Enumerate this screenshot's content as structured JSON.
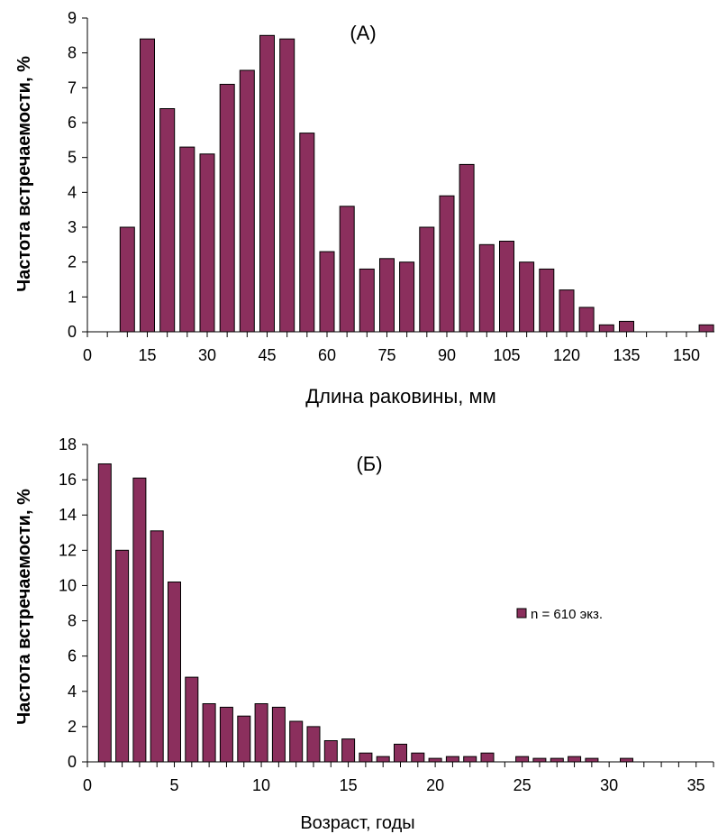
{
  "chart_data": [
    {
      "type": "bar",
      "title": "(А)",
      "xlabel": "Длина раковины, мм",
      "ylabel": "Частота встречаемости, %",
      "ylim": [
        0,
        9
      ],
      "yticks": [
        0,
        1,
        2,
        3,
        4,
        5,
        6,
        7,
        8,
        9
      ],
      "xlim": [
        0,
        157
      ],
      "xticks": [
        0,
        15,
        30,
        45,
        60,
        75,
        90,
        105,
        120,
        135,
        150
      ],
      "x": [
        10,
        15,
        20,
        25,
        30,
        35,
        40,
        45,
        50,
        55,
        60,
        65,
        70,
        75,
        80,
        85,
        90,
        95,
        100,
        105,
        110,
        115,
        120,
        125,
        130,
        135,
        155
      ],
      "values": [
        3.0,
        8.4,
        6.4,
        5.3,
        5.1,
        7.1,
        7.5,
        8.5,
        8.4,
        5.7,
        2.3,
        3.6,
        1.8,
        2.1,
        2.0,
        3.0,
        3.9,
        4.8,
        2.5,
        2.6,
        2.0,
        1.8,
        1.2,
        0.7,
        0.2,
        0.3,
        0.2
      ],
      "bar_color": "#8b2f5d",
      "grid": false,
      "legend": null
    },
    {
      "type": "bar",
      "title": "(Б)",
      "xlabel": "Возраст, годы",
      "ylabel": "Частота встречаемости, %",
      "ylim": [
        0,
        18
      ],
      "yticks": [
        0,
        2,
        4,
        6,
        8,
        10,
        12,
        14,
        16,
        18
      ],
      "xlim": [
        0,
        36
      ],
      "xticks": [
        0,
        5,
        10,
        15,
        20,
        25,
        30,
        35
      ],
      "x": [
        1,
        2,
        3,
        4,
        5,
        6,
        7,
        8,
        9,
        10,
        11,
        12,
        13,
        14,
        15,
        16,
        17,
        18,
        19,
        20,
        21,
        22,
        23,
        25,
        26,
        27,
        28,
        29,
        31
      ],
      "values": [
        16.9,
        12.0,
        16.1,
        13.1,
        10.2,
        4.8,
        3.3,
        3.1,
        2.6,
        3.3,
        3.1,
        2.3,
        2.0,
        1.2,
        1.3,
        0.5,
        0.3,
        1.0,
        0.5,
        0.2,
        0.3,
        0.3,
        0.5,
        0.3,
        0.2,
        0.2,
        0.3,
        0.2,
        0.2
      ],
      "bar_color": "#8b2f5d",
      "grid": false,
      "legend": {
        "label": "n = 610 экз.",
        "position": "right"
      }
    }
  ]
}
